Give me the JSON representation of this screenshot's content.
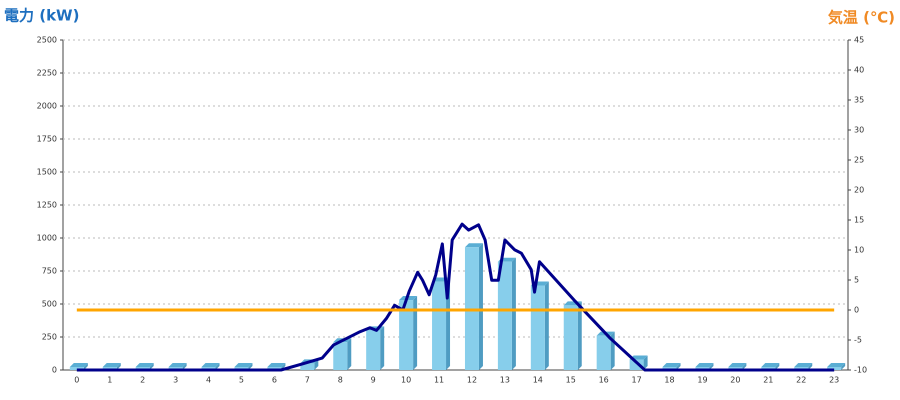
{
  "chart_data": {
    "type": "bar-line",
    "y_title": "電力 (kW)",
    "y2_title": "気温 (℃)",
    "categories": [
      0,
      1,
      2,
      3,
      4,
      5,
      6,
      7,
      8,
      9,
      10,
      11,
      12,
      13,
      14,
      15,
      16,
      17,
      18,
      19,
      20,
      21,
      22,
      23
    ],
    "xlim": [
      -0.42,
      23.42
    ],
    "ylim": [
      0,
      2500
    ],
    "yticks": [
      0,
      250,
      500,
      750,
      1000,
      1250,
      1500,
      1750,
      2000,
      2250,
      2500
    ],
    "y2lim": [
      -10,
      45
    ],
    "y2ticks": [
      -10,
      -5,
      0,
      5,
      10,
      15,
      20,
      25,
      30,
      35,
      40,
      45
    ],
    "grid": true,
    "series": [
      {
        "type": "bar",
        "color": "#87ceeb",
        "values": [
          0,
          0,
          0,
          0,
          0,
          0,
          0,
          50,
          210,
          300,
          530,
          670,
          930,
          820,
          640,
          490,
          260,
          80,
          0,
          0,
          0,
          0,
          0,
          0
        ]
      },
      {
        "type": "line",
        "color": "#00008b",
        "x": [
          0,
          6.2,
          6.9,
          7.45,
          7.8,
          8.2,
          8.6,
          8.9,
          9.1,
          9.4,
          9.65,
          9.9,
          10.1,
          10.35,
          10.5,
          10.7,
          10.9,
          11.1,
          11.25,
          11.4,
          11.7,
          11.9,
          12.2,
          12.4,
          12.6,
          12.8,
          13.0,
          13.3,
          13.5,
          13.8,
          13.9,
          14.05,
          15.1,
          16.2,
          17.25,
          23
        ],
        "values": [
          0,
          0,
          50,
          90,
          190,
          240,
          290,
          320,
          300,
          390,
          490,
          455,
          600,
          740,
          680,
          570,
          720,
          955,
          545,
          985,
          1105,
          1060,
          1100,
          985,
          680,
          680,
          985,
          910,
          885,
          760,
          590,
          820,
          530,
          240,
          0,
          0
        ]
      },
      {
        "type": "line",
        "axis": "y2",
        "color": "#ffa500",
        "values": [
          0,
          0,
          0,
          0,
          0,
          0,
          0,
          0,
          0,
          0,
          0,
          0,
          0,
          0,
          0,
          0,
          0,
          0,
          0,
          0,
          0,
          0,
          0,
          0
        ]
      }
    ]
  }
}
